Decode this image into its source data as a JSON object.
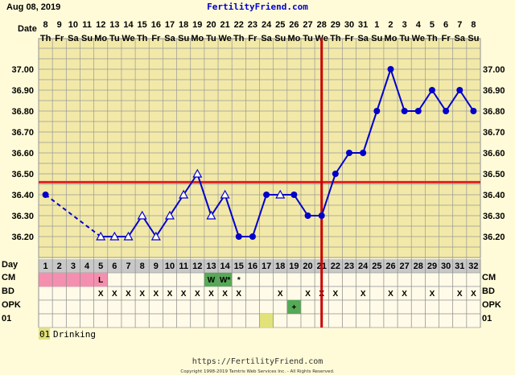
{
  "header": {
    "date": "Aug 08, 2019",
    "site": "FertilityFriend.com"
  },
  "footer": {
    "url": "https://FertilityFriend.com",
    "copyright": "Copyright 1998-2019 Tamtris Web Services Inc. - All Rights Reserved."
  },
  "row_labels": {
    "date": "Date",
    "day": "Day",
    "cm": "CM",
    "bd": "BD",
    "opk": "OPK",
    "custom": "01"
  },
  "legend": [
    {
      "code": "01",
      "text": "Drinking"
    }
  ],
  "colors": {
    "background": "#fffbd8",
    "grid_cell": "#f2e9a8",
    "line": "#0000cc",
    "coverline": "#dd2222",
    "ovulation_line": "#cc0000",
    "period": "#f58fb0",
    "fertile_cm": "#55aa55",
    "opk_positive": "#55aa55",
    "custom_marker": "#e2e27a"
  },
  "chart_data": {
    "type": "line",
    "title": "",
    "xlabel": "Day",
    "ylabel": "",
    "ylim": [
      36.1,
      37.1
    ],
    "y_ticks": [
      "37.00",
      "36.90",
      "36.80",
      "36.70",
      "36.60",
      "36.50",
      "36.40",
      "36.30",
      "36.20"
    ],
    "dates": [
      "8",
      "9",
      "10",
      "11",
      "12",
      "13",
      "14",
      "15",
      "16",
      "17",
      "18",
      "19",
      "20",
      "21",
      "22",
      "23",
      "24",
      "25",
      "26",
      "27",
      "28",
      "29",
      "30",
      "31",
      "1",
      "2",
      "3",
      "4",
      "5",
      "6",
      "7",
      "8"
    ],
    "weekdays": [
      "Th",
      "Fr",
      "Sa",
      "Su",
      "Mo",
      "Tu",
      "We",
      "Th",
      "Fr",
      "Sa",
      "Su",
      "Mo",
      "Tu",
      "We",
      "Th",
      "Fr",
      "Sa",
      "Su",
      "Mo",
      "Tu",
      "We",
      "Th",
      "Fr",
      "Sa",
      "Su",
      "Mo",
      "Tu",
      "We",
      "Th",
      "Fr",
      "Sa",
      "Su"
    ],
    "days": [
      1,
      2,
      3,
      4,
      5,
      6,
      7,
      8,
      9,
      10,
      11,
      12,
      13,
      14,
      15,
      16,
      17,
      18,
      19,
      20,
      21,
      22,
      23,
      24,
      25,
      26,
      27,
      28,
      29,
      30,
      31,
      32
    ],
    "temperatures": [
      36.4,
      null,
      null,
      null,
      36.2,
      36.2,
      36.2,
      36.3,
      36.2,
      36.3,
      36.4,
      36.5,
      36.3,
      36.4,
      36.2,
      36.2,
      36.4,
      36.4,
      36.4,
      36.3,
      36.3,
      36.5,
      36.6,
      36.6,
      36.8,
      37.0,
      36.8,
      36.8,
      36.9,
      36.8,
      36.9,
      36.8
    ],
    "markers": [
      "dot",
      null,
      null,
      null,
      "triangle",
      "triangle",
      "triangle",
      "triangle",
      "triangle",
      "triangle",
      "triangle",
      "triangle",
      "triangle",
      "triangle",
      "dot",
      "dot",
      "dot",
      "triangle",
      "dot",
      "dot",
      "dot",
      "dot",
      "dot",
      "dot",
      "dot",
      "dot",
      "dot",
      "dot",
      "dot",
      "dot",
      "dot",
      "dot"
    ],
    "coverline": 36.46,
    "ovulation_day": 21,
    "period_days": [
      1,
      2,
      3,
      4,
      5
    ],
    "cm": [
      "",
      "",
      "",
      "",
      "L",
      "",
      "",
      "",
      "",
      "",
      "",
      "",
      "W",
      "W*",
      "*",
      "",
      "",
      "",
      "",
      "",
      "",
      "",
      "",
      "",
      "",
      "",
      "",
      "",
      "",
      "",
      "",
      ""
    ],
    "bd": [
      "",
      "",
      "",
      "",
      "X",
      "X",
      "X",
      "X",
      "X",
      "X",
      "X",
      "X",
      "X",
      "X",
      "X",
      "",
      "",
      "X",
      "",
      "X",
      "X",
      "X",
      "",
      "X",
      "",
      "X",
      "X",
      "",
      "X",
      "",
      "X",
      "X"
    ],
    "opk": [
      "",
      "",
      "",
      "",
      "",
      "",
      "",
      "",
      "",
      "",
      "",
      "",
      "",
      "",
      "",
      "",
      "",
      "",
      "+",
      "",
      "",
      "",
      "",
      "",
      "",
      "",
      "",
      "",
      "",
      "",
      "",
      ""
    ],
    "custom_01_days": [
      17
    ],
    "grid": true
  }
}
